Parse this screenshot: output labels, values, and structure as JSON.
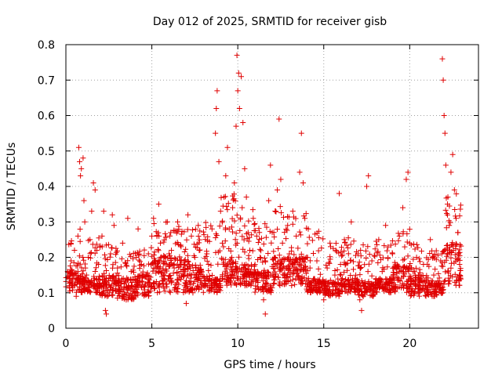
{
  "chart_data": {
    "type": "scatter",
    "title": "Day 012 of 2025, SRMTID for receiver gisb",
    "xlabel": "GPS time / hours",
    "ylabel": "SRMTID / TECUs",
    "xlim": [
      0,
      24
    ],
    "ylim": [
      0,
      0.8
    ],
    "xticks": [
      0,
      5,
      10,
      15,
      20
    ],
    "yticks": [
      0,
      0.1,
      0.2,
      0.3,
      0.4,
      0.5,
      0.6,
      0.7,
      0.8
    ],
    "xtick_labels": [
      "0",
      "5",
      "10",
      "15",
      "20"
    ],
    "ytick_labels": [
      "0",
      "0.1",
      "0.2",
      "0.3",
      "0.4",
      "0.5",
      "0.6",
      "0.7",
      "0.8"
    ],
    "grid": true,
    "marker": "+",
    "series": [
      {
        "name": "SRMTID",
        "color": "#e00000",
        "points": [
          [
            0.1,
            0.16
          ],
          [
            0.2,
            0.12
          ],
          [
            0.3,
            0.19
          ],
          [
            0.4,
            0.14
          ],
          [
            0.5,
            0.22
          ],
          [
            0.6,
            0.09
          ],
          [
            0.7,
            0.26
          ],
          [
            0.75,
            0.51
          ],
          [
            0.8,
            0.47
          ],
          [
            0.85,
            0.43
          ],
          [
            0.9,
            0.45
          ],
          [
            1.0,
            0.48
          ],
          [
            1.05,
            0.36
          ],
          [
            1.1,
            0.3
          ],
          [
            1.2,
            0.15
          ],
          [
            1.3,
            0.2
          ],
          [
            1.4,
            0.25
          ],
          [
            1.5,
            0.33
          ],
          [
            1.6,
            0.41
          ],
          [
            1.7,
            0.39
          ],
          [
            1.8,
            0.22
          ],
          [
            1.9,
            0.18
          ],
          [
            2.0,
            0.12
          ],
          [
            2.1,
            0.26
          ],
          [
            2.2,
            0.33
          ],
          [
            2.3,
            0.05
          ],
          [
            2.35,
            0.04
          ],
          [
            2.4,
            0.09
          ],
          [
            2.5,
            0.14
          ],
          [
            2.6,
            0.21
          ],
          [
            2.7,
            0.32
          ],
          [
            2.8,
            0.29
          ],
          [
            3.0,
            0.17
          ],
          [
            3.1,
            0.11
          ],
          [
            3.3,
            0.24
          ],
          [
            3.5,
            0.13
          ],
          [
            3.6,
            0.31
          ],
          [
            3.8,
            0.16
          ],
          [
            4.0,
            0.1
          ],
          [
            4.1,
            0.2
          ],
          [
            4.2,
            0.28
          ],
          [
            4.4,
            0.18
          ],
          [
            4.6,
            0.12
          ],
          [
            4.8,
            0.21
          ],
          [
            5.0,
            0.26
          ],
          [
            5.1,
            0.31
          ],
          [
            5.2,
            0.17
          ],
          [
            5.4,
            0.35
          ],
          [
            5.5,
            0.24
          ],
          [
            5.7,
            0.14
          ],
          [
            5.9,
            0.3
          ],
          [
            6.0,
            0.21
          ],
          [
            6.1,
            0.27
          ],
          [
            6.3,
            0.17
          ],
          [
            6.5,
            0.3
          ],
          [
            6.7,
            0.23
          ],
          [
            6.9,
            0.12
          ],
          [
            7.0,
            0.07
          ],
          [
            7.1,
            0.32
          ],
          [
            7.3,
            0.26
          ],
          [
            7.5,
            0.2
          ],
          [
            7.7,
            0.29
          ],
          [
            7.9,
            0.16
          ],
          [
            8.0,
            0.12
          ],
          [
            8.2,
            0.21
          ],
          [
            8.3,
            0.18
          ],
          [
            8.5,
            0.28
          ],
          [
            8.6,
            0.13
          ],
          [
            8.7,
            0.55
          ],
          [
            8.75,
            0.62
          ],
          [
            8.8,
            0.67
          ],
          [
            8.9,
            0.47
          ],
          [
            9.0,
            0.33
          ],
          [
            9.1,
            0.24
          ],
          [
            9.2,
            0.37
          ],
          [
            9.3,
            0.43
          ],
          [
            9.4,
            0.51
          ],
          [
            9.5,
            0.28
          ],
          [
            9.6,
            0.18
          ],
          [
            9.7,
            0.34
          ],
          [
            9.8,
            0.41
          ],
          [
            9.9,
            0.57
          ],
          [
            9.95,
            0.77
          ],
          [
            10.0,
            0.67
          ],
          [
            10.05,
            0.72
          ],
          [
            10.1,
            0.62
          ],
          [
            10.2,
            0.71
          ],
          [
            10.3,
            0.58
          ],
          [
            10.4,
            0.45
          ],
          [
            10.5,
            0.37
          ],
          [
            10.6,
            0.27
          ],
          [
            10.7,
            0.22
          ],
          [
            10.8,
            0.13
          ],
          [
            10.9,
            0.31
          ],
          [
            11.0,
            0.18
          ],
          [
            11.1,
            0.26
          ],
          [
            11.3,
            0.2
          ],
          [
            11.5,
            0.08
          ],
          [
            11.6,
            0.04
          ],
          [
            11.7,
            0.14
          ],
          [
            11.8,
            0.36
          ],
          [
            11.9,
            0.46
          ],
          [
            12.0,
            0.27
          ],
          [
            12.1,
            0.18
          ],
          [
            12.2,
            0.33
          ],
          [
            12.3,
            0.39
          ],
          [
            12.4,
            0.59
          ],
          [
            12.5,
            0.42
          ],
          [
            12.6,
            0.24
          ],
          [
            12.7,
            0.15
          ],
          [
            12.9,
            0.29
          ],
          [
            13.0,
            0.21
          ],
          [
            13.2,
            0.33
          ],
          [
            13.4,
            0.26
          ],
          [
            13.6,
            0.44
          ],
          [
            13.7,
            0.55
          ],
          [
            13.8,
            0.41
          ],
          [
            13.9,
            0.31
          ],
          [
            14.0,
            0.2
          ],
          [
            14.1,
            0.28
          ],
          [
            14.2,
            0.17
          ],
          [
            14.4,
            0.11
          ],
          [
            14.6,
            0.19
          ],
          [
            14.8,
            0.13
          ],
          [
            15.0,
            0.08
          ],
          [
            15.2,
            0.17
          ],
          [
            15.4,
            0.23
          ],
          [
            15.5,
            0.1
          ],
          [
            15.7,
            0.22
          ],
          [
            15.9,
            0.38
          ],
          [
            16.0,
            0.15
          ],
          [
            16.2,
            0.25
          ],
          [
            16.4,
            0.1
          ],
          [
            16.6,
            0.3
          ],
          [
            16.8,
            0.14
          ],
          [
            17.0,
            0.21
          ],
          [
            17.1,
            0.08
          ],
          [
            17.2,
            0.05
          ],
          [
            17.4,
            0.13
          ],
          [
            17.5,
            0.4
          ],
          [
            17.6,
            0.43
          ],
          [
            17.8,
            0.19
          ],
          [
            18.0,
            0.12
          ],
          [
            18.2,
            0.25
          ],
          [
            18.4,
            0.16
          ],
          [
            18.6,
            0.29
          ],
          [
            18.8,
            0.11
          ],
          [
            19.0,
            0.21
          ],
          [
            19.2,
            0.17
          ],
          [
            19.4,
            0.26
          ],
          [
            19.6,
            0.34
          ],
          [
            19.8,
            0.42
          ],
          [
            19.9,
            0.44
          ],
          [
            20.0,
            0.24
          ],
          [
            20.2,
            0.16
          ],
          [
            20.4,
            0.2
          ],
          [
            20.6,
            0.13
          ],
          [
            20.8,
            0.18
          ],
          [
            21.0,
            0.11
          ],
          [
            21.2,
            0.25
          ],
          [
            21.4,
            0.15
          ],
          [
            21.6,
            0.12
          ],
          [
            21.8,
            0.19
          ],
          [
            21.9,
            0.76
          ],
          [
            21.95,
            0.7
          ],
          [
            22.0,
            0.6
          ],
          [
            22.05,
            0.55
          ],
          [
            22.1,
            0.46
          ],
          [
            22.2,
            0.35
          ],
          [
            22.3,
            0.29
          ],
          [
            22.4,
            0.44
          ],
          [
            22.5,
            0.49
          ],
          [
            22.6,
            0.39
          ],
          [
            22.7,
            0.31
          ],
          [
            22.8,
            0.27
          ],
          [
            22.9,
            0.18
          ]
        ],
        "density": [
          [
            0.0,
            1.0,
            0.1,
            0.13,
            0.28
          ],
          [
            1.0,
            2.0,
            0.1,
            0.12,
            0.26
          ],
          [
            2.0,
            3.0,
            0.09,
            0.12,
            0.24
          ],
          [
            3.0,
            4.0,
            0.08,
            0.11,
            0.22
          ],
          [
            4.0,
            5.0,
            0.09,
            0.12,
            0.23
          ],
          [
            5.0,
            6.0,
            0.1,
            0.15,
            0.3
          ],
          [
            6.0,
            7.0,
            0.1,
            0.15,
            0.3
          ],
          [
            7.0,
            8.0,
            0.1,
            0.14,
            0.28
          ],
          [
            8.0,
            9.0,
            0.1,
            0.12,
            0.3
          ],
          [
            9.0,
            10.0,
            0.12,
            0.16,
            0.38
          ],
          [
            10.0,
            11.0,
            0.12,
            0.15,
            0.34
          ],
          [
            11.0,
            12.0,
            0.1,
            0.13,
            0.3
          ],
          [
            12.0,
            13.0,
            0.12,
            0.16,
            0.35
          ],
          [
            13.0,
            14.0,
            0.12,
            0.16,
            0.33
          ],
          [
            14.0,
            15.0,
            0.1,
            0.12,
            0.28
          ],
          [
            15.0,
            16.0,
            0.09,
            0.11,
            0.24
          ],
          [
            16.0,
            17.0,
            0.1,
            0.12,
            0.26
          ],
          [
            17.0,
            18.0,
            0.09,
            0.11,
            0.24
          ],
          [
            18.0,
            19.0,
            0.1,
            0.12,
            0.25
          ],
          [
            19.0,
            20.0,
            0.1,
            0.14,
            0.3
          ],
          [
            20.0,
            21.0,
            0.09,
            0.12,
            0.24
          ],
          [
            21.0,
            22.0,
            0.09,
            0.11,
            0.22
          ],
          [
            22.0,
            23.0,
            0.12,
            0.18,
            0.38
          ]
        ]
      }
    ]
  }
}
